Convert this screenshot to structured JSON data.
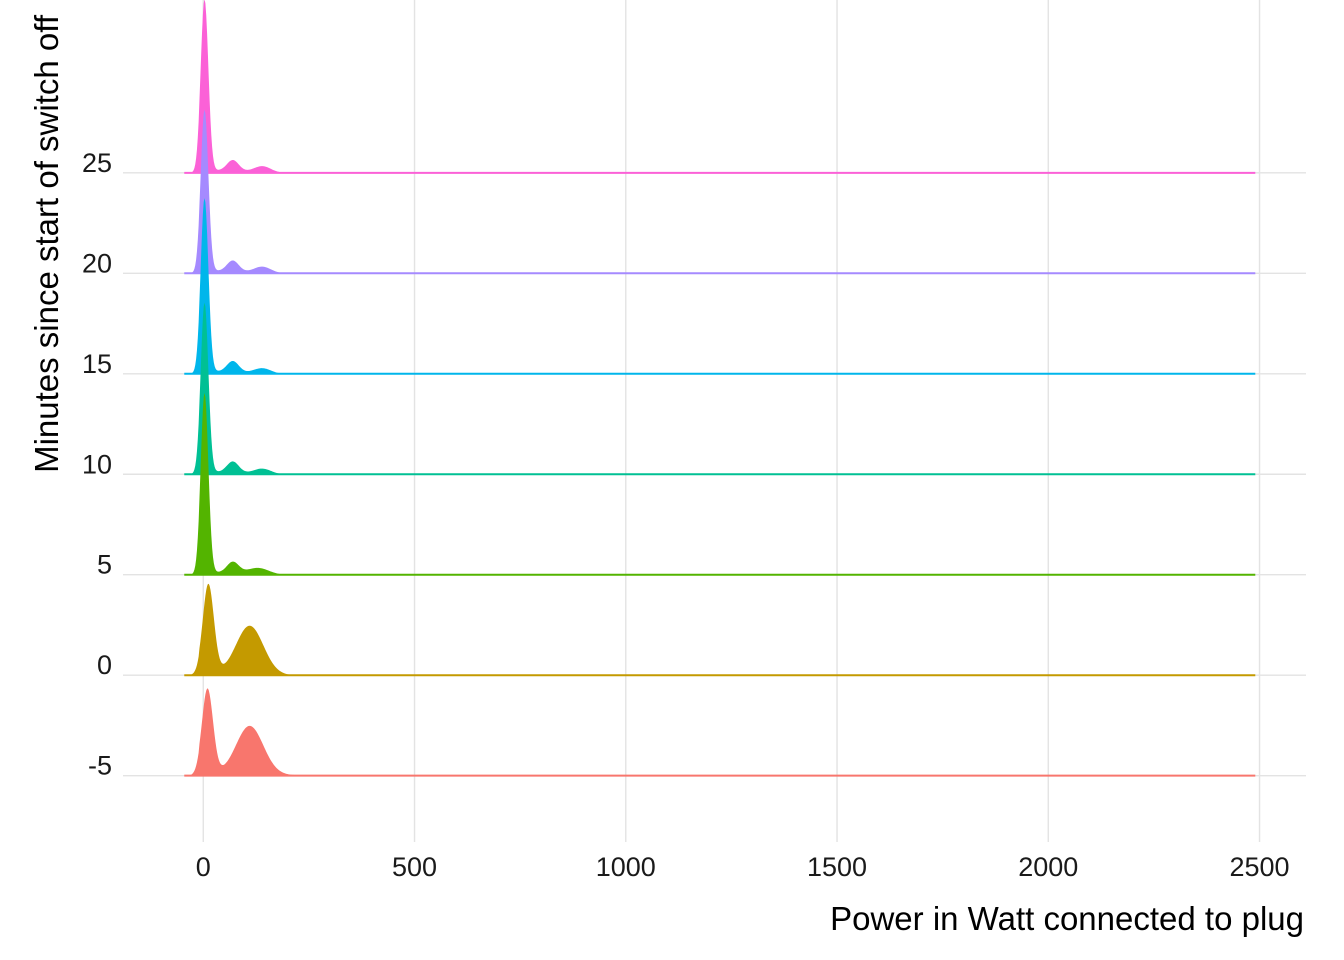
{
  "chart_data": {
    "type": "ridgeline",
    "xlabel": "Power in Watt connected to plug",
    "ylabel": "Minutes since start of switch off",
    "x_ticks": [
      0,
      500,
      1000,
      1500,
      2000,
      2500
    ],
    "y_ticks": [
      -5,
      0,
      5,
      10,
      15,
      20,
      25
    ],
    "xlim": [
      -190,
      2610
    ],
    "ylim": [
      -8.3,
      33.6
    ],
    "grid": true,
    "legend": "none",
    "series": [
      {
        "minute": -5,
        "color": "#F8766D",
        "peaks": [
          {
            "x": 10,
            "height": 4.2,
            "width": 13
          },
          {
            "x": 110,
            "height": 2.4,
            "width": 32
          }
        ],
        "tail_end": 260
      },
      {
        "minute": 0,
        "color": "#C49A00",
        "peaks": [
          {
            "x": 12,
            "height": 4.4,
            "width": 13
          },
          {
            "x": 110,
            "height": 2.4,
            "width": 32
          }
        ],
        "tail_end": 200
      },
      {
        "minute": 5,
        "color": "#53B400",
        "peaks": [
          {
            "x": 3,
            "height": 8.9,
            "width": 9
          },
          {
            "x": 70,
            "height": 0.55,
            "width": 14
          },
          {
            "x": 130,
            "height": 0.3,
            "width": 25
          }
        ],
        "tail_end": 180
      },
      {
        "minute": 10,
        "color": "#00C094",
        "peaks": [
          {
            "x": 3,
            "height": 8.4,
            "width": 9
          },
          {
            "x": 70,
            "height": 0.55,
            "width": 14
          },
          {
            "x": 140,
            "height": 0.25,
            "width": 20
          }
        ],
        "tail_end": 180
      },
      {
        "minute": 15,
        "color": "#00B6EB",
        "peaks": [
          {
            "x": 3,
            "height": 8.6,
            "width": 9
          },
          {
            "x": 70,
            "height": 0.55,
            "width": 14
          },
          {
            "x": 140,
            "height": 0.25,
            "width": 20
          }
        ],
        "tail_end": 175
      },
      {
        "minute": 20,
        "color": "#A58AFF",
        "peaks": [
          {
            "x": 3,
            "height": 8.0,
            "width": 9
          },
          {
            "x": 70,
            "height": 0.55,
            "width": 14
          },
          {
            "x": 140,
            "height": 0.3,
            "width": 20
          }
        ],
        "tail_end": 180
      },
      {
        "minute": 25,
        "color": "#FB61D7",
        "peaks": [
          {
            "x": 3,
            "height": 8.5,
            "width": 9
          },
          {
            "x": 70,
            "height": 0.55,
            "width": 14
          },
          {
            "x": 140,
            "height": 0.3,
            "width": 20
          }
        ],
        "tail_end": 180
      }
    ],
    "x_range_of_densities": [
      -45,
      2490
    ]
  }
}
